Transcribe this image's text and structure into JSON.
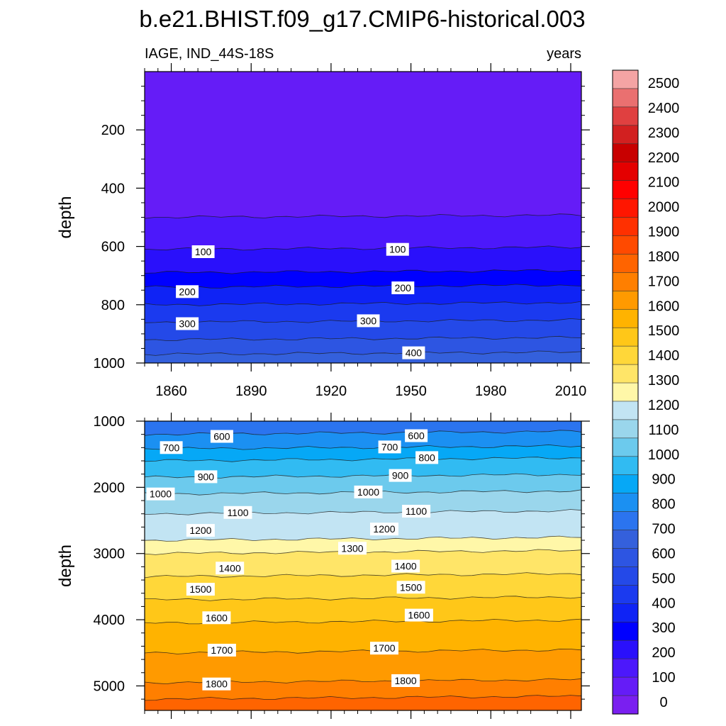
{
  "figure": {
    "title": "b.e21.BHIST.f09_g17.CMIP6-historical.003",
    "left_label": "IAGE, IND_44S-18S",
    "right_label": "years"
  },
  "chart_data": [
    {
      "type": "contour",
      "panel": "upper",
      "ylabel": "depth",
      "xlabel": "",
      "xlim": [
        1850,
        2014
      ],
      "ylim": [
        1000,
        0
      ],
      "x_ticks": [
        1860,
        1890,
        1920,
        1950,
        1980,
        2010
      ],
      "y_ticks": [
        200,
        400,
        600,
        800,
        1000
      ],
      "x_ticklabels_shown": true,
      "bands": [
        {
          "level_from": 0,
          "level_to": 50,
          "depth_top": 0,
          "depth_bottom": 500,
          "color": "#651cf7"
        },
        {
          "level_from": 50,
          "level_to": 100,
          "depth_top": 500,
          "depth_bottom": 610,
          "color": "#4c18fb"
        },
        {
          "level_from": 100,
          "level_to": 150,
          "depth_top": 610,
          "depth_bottom": 690,
          "color": "#2a10fb"
        },
        {
          "level_from": 150,
          "level_to": 200,
          "depth_top": 690,
          "depth_bottom": 740,
          "color": "#0000ff"
        },
        {
          "level_from": 200,
          "level_to": 250,
          "depth_top": 740,
          "depth_bottom": 800,
          "color": "#0f23f5"
        },
        {
          "level_from": 250,
          "level_to": 300,
          "depth_top": 800,
          "depth_bottom": 860,
          "color": "#1b3aef"
        },
        {
          "level_from": 300,
          "level_to": 350,
          "depth_top": 860,
          "depth_bottom": 920,
          "color": "#2449e8"
        },
        {
          "level_from": 350,
          "level_to": 400,
          "depth_top": 920,
          "depth_bottom": 970,
          "color": "#2d55e2"
        },
        {
          "level_from": 400,
          "level_to": 450,
          "depth_top": 970,
          "depth_bottom": 1000,
          "color": "#3460dc"
        }
      ],
      "contour_labels": [
        {
          "text": "100",
          "year": 1872,
          "depth": 618
        },
        {
          "text": "100",
          "year": 1945,
          "depth": 610
        },
        {
          "text": "200",
          "year": 1866,
          "depth": 755
        },
        {
          "text": "200",
          "year": 1947,
          "depth": 742
        },
        {
          "text": "300",
          "year": 1866,
          "depth": 865
        },
        {
          "text": "300",
          "year": 1934,
          "depth": 855
        },
        {
          "text": "400",
          "year": 1951,
          "depth": 965
        }
      ]
    },
    {
      "type": "contour",
      "panel": "lower",
      "ylabel": "depth",
      "xlabel": "",
      "xlim": [
        1850,
        2014
      ],
      "ylim": [
        5370,
        1000
      ],
      "x_ticks": [
        1860,
        1890,
        1920,
        1950,
        1980,
        2010
      ],
      "y_ticks": [
        1000,
        2000,
        3000,
        4000,
        5000
      ],
      "x_ticklabels_shown": false,
      "bands": [
        {
          "level_from": 500,
          "level_to": 600,
          "depth_top": 1000,
          "depth_bottom": 1200,
          "color": "#2b74ef"
        },
        {
          "level_from": 600,
          "level_to": 700,
          "depth_top": 1200,
          "depth_bottom": 1420,
          "color": "#1b90f2"
        },
        {
          "level_from": 700,
          "level_to": 800,
          "depth_top": 1420,
          "depth_bottom": 1600,
          "color": "#06a8f6"
        },
        {
          "level_from": 800,
          "level_to": 900,
          "depth_top": 1600,
          "depth_bottom": 1850,
          "color": "#31bbf2"
        },
        {
          "level_from": 900,
          "level_to": 1000,
          "depth_top": 1850,
          "depth_bottom": 2100,
          "color": "#6ccaed"
        },
        {
          "level_from": 1000,
          "level_to": 1100,
          "depth_top": 2100,
          "depth_bottom": 2400,
          "color": "#9ad6ec"
        },
        {
          "level_from": 1100,
          "level_to": 1200,
          "depth_top": 2400,
          "depth_bottom": 2800,
          "color": "#c2e4f3"
        },
        {
          "level_from": 1200,
          "level_to": 1300,
          "depth_top": 2800,
          "depth_bottom": 3000,
          "color": "#fff7a8"
        },
        {
          "level_from": 1300,
          "level_to": 1400,
          "depth_top": 3000,
          "depth_bottom": 3350,
          "color": "#ffe568"
        },
        {
          "level_from": 1400,
          "level_to": 1500,
          "depth_top": 3350,
          "depth_bottom": 3700,
          "color": "#ffd739"
        },
        {
          "level_from": 1500,
          "level_to": 1600,
          "depth_top": 3700,
          "depth_bottom": 4050,
          "color": "#ffc718"
        },
        {
          "level_from": 1600,
          "level_to": 1700,
          "depth_top": 4050,
          "depth_bottom": 4500,
          "color": "#ffb300"
        },
        {
          "level_from": 1700,
          "level_to": 1800,
          "depth_top": 4500,
          "depth_bottom": 4950,
          "color": "#ff9a00"
        },
        {
          "level_from": 1800,
          "level_to": 1900,
          "depth_top": 4950,
          "depth_bottom": 5200,
          "color": "#ff7f00"
        },
        {
          "level_from": 1900,
          "level_to": 2000,
          "depth_top": 5200,
          "depth_bottom": 5370,
          "color": "#ff6400"
        }
      ],
      "contour_labels": [
        {
          "text": "600",
          "year": 1879,
          "depth": 1230
        },
        {
          "text": "600",
          "year": 1952,
          "depth": 1220
        },
        {
          "text": "700",
          "year": 1860,
          "depth": 1400
        },
        {
          "text": "700",
          "year": 1942,
          "depth": 1390
        },
        {
          "text": "800",
          "year": 1956,
          "depth": 1550
        },
        {
          "text": "900",
          "year": 1873,
          "depth": 1840
        },
        {
          "text": "900",
          "year": 1946,
          "depth": 1820
        },
        {
          "text": "1000",
          "year": 1856,
          "depth": 2100
        },
        {
          "text": "1000",
          "year": 1934,
          "depth": 2070
        },
        {
          "text": "1100",
          "year": 1885,
          "depth": 2380
        },
        {
          "text": "1100",
          "year": 1952,
          "depth": 2360
        },
        {
          "text": "1200",
          "year": 1871,
          "depth": 2650
        },
        {
          "text": "1200",
          "year": 1940,
          "depth": 2630
        },
        {
          "text": "1300",
          "year": 1928,
          "depth": 2920
        },
        {
          "text": "1400",
          "year": 1882,
          "depth": 3220
        },
        {
          "text": "1400",
          "year": 1948,
          "depth": 3190
        },
        {
          "text": "1500",
          "year": 1871,
          "depth": 3540
        },
        {
          "text": "1500",
          "year": 1950,
          "depth": 3510
        },
        {
          "text": "1600",
          "year": 1877,
          "depth": 3970
        },
        {
          "text": "1600",
          "year": 1953,
          "depth": 3930
        },
        {
          "text": "1700",
          "year": 1879,
          "depth": 4460
        },
        {
          "text": "1700",
          "year": 1940,
          "depth": 4430
        },
        {
          "text": "1800",
          "year": 1877,
          "depth": 4970
        },
        {
          "text": "1800",
          "year": 1948,
          "depth": 4920
        }
      ]
    }
  ],
  "colorbar": {
    "labels": [
      "0",
      "100",
      "200",
      "300",
      "400",
      "500",
      "600",
      "700",
      "800",
      "900",
      "1000",
      "1100",
      "1200",
      "1300",
      "1400",
      "1500",
      "1600",
      "1700",
      "1800",
      "1900",
      "2000",
      "2100",
      "2200",
      "2300",
      "2400",
      "2500"
    ],
    "label_values": [
      0,
      100,
      200,
      300,
      400,
      500,
      600,
      700,
      800,
      900,
      1000,
      1100,
      1200,
      1300,
      1400,
      1500,
      1600,
      1700,
      1800,
      1900,
      2000,
      2100,
      2200,
      2300,
      2400,
      2500
    ],
    "colors": [
      "#7a1ff0",
      "#651cf7",
      "#4c18fb",
      "#2a10fb",
      "#0000ff",
      "#0f23f5",
      "#1b3aef",
      "#2449e8",
      "#2d55e2",
      "#3460dc",
      "#2b74ef",
      "#1b90f2",
      "#06a8f6",
      "#31bbf2",
      "#6ccaed",
      "#9ad6ec",
      "#c2e4f3",
      "#fff7a8",
      "#ffe568",
      "#ffd739",
      "#ffc718",
      "#ffb300",
      "#ff9a00",
      "#ff7f00",
      "#ff6400",
      "#ff4a00",
      "#ff3000",
      "#ff1600",
      "#ff0000",
      "#e40000",
      "#c80000",
      "#d22020",
      "#e04040",
      "#ea7070",
      "#f4a4a4"
    ]
  }
}
